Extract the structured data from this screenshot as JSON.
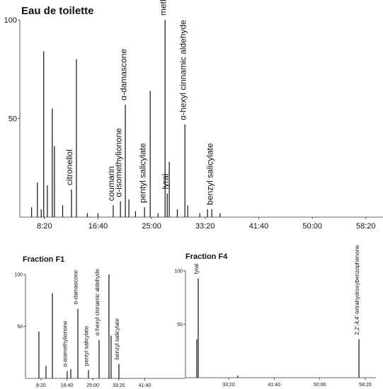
{
  "chart_data": [
    {
      "type": "chromatogram",
      "title": "Eau de toilette",
      "x": [
        380,
        434,
        470,
        493,
        527,
        573,
        593,
        670,
        752,
        798,
        900,
        1000,
        1142,
        1209,
        1255,
        1288,
        1350,
        1434,
        1487,
        1560,
        1626,
        1646,
        1665,
        1740,
        1811,
        1837,
        1950,
        2022,
        2062,
        2140
      ],
      "values": [
        5,
        17.5,
        4,
        84,
        16,
        55,
        36,
        6,
        14,
        80,
        2,
        2,
        6,
        8,
        57,
        9,
        3,
        5,
        64,
        2,
        100,
        12,
        28,
        4,
        47,
        6,
        2,
        4,
        4,
        2
      ],
      "xlim": [
        270,
        3660
      ],
      "ylim": [
        0,
        100
      ],
      "xticks": [
        {
          "value": 500,
          "label": "8:20"
        },
        {
          "value": 1000,
          "label": "16:40"
        },
        {
          "value": 1500,
          "label": "25:00"
        },
        {
          "value": 2000,
          "label": "33:20"
        },
        {
          "value": 2500,
          "label": "41:40"
        },
        {
          "value": 3000,
          "label": "50:00"
        },
        {
          "value": 3500,
          "label": "58:20"
        }
      ],
      "yticks": [
        50,
        100
      ],
      "color": "#111111",
      "annotations": [
        {
          "text": "citronellol",
          "x": 752
        },
        {
          "text": "coumarin",
          "x": 1142
        },
        {
          "text": "α-isomethylionone",
          "x": 1209
        },
        {
          "text": "α-damascone",
          "x": 1255
        },
        {
          "text": "pentyl salicylate",
          "x": 1434
        },
        {
          "text": "methyldihydrojasmonate",
          "x": 1626
        },
        {
          "text": "lyral",
          "x": 1646
        },
        {
          "text": "α-hexyl cinnamic aldehyde",
          "x": 1811
        },
        {
          "text": "benzyl salicylate",
          "x": 2062
        }
      ]
    },
    {
      "type": "chromatogram",
      "title": "Fraction F1",
      "x": [
        459,
        596,
        719,
        1005,
        1074,
        1210,
        1415,
        1620,
        1811,
        1852,
        2003
      ],
      "values": [
        45,
        12,
        82,
        7,
        9,
        67,
        8,
        37,
        100,
        41,
        14
      ],
      "xlim": [
        200,
        3287
      ],
      "ylim": [
        0,
        100
      ],
      "xticks": [
        {
          "value": 500,
          "label": "8:20"
        },
        {
          "value": 1000,
          "label": "16:40"
        },
        {
          "value": 1500,
          "label": "25:00"
        },
        {
          "value": 2000,
          "label": "33:20"
        },
        {
          "value": 2500,
          "label": "41:40"
        }
      ],
      "yticks": [
        50,
        100
      ],
      "color": "#111111",
      "annotations": [
        {
          "text": "α-isomethylionone",
          "x": 1005
        },
        {
          "text": "α-damascone",
          "x": 1210
        },
        {
          "text": "pentyl salicylate",
          "x": 1415
        },
        {
          "text": "α-hexyl cinnamic aldehyde",
          "x": 1620
        },
        {
          "text": "benzyl salicylate",
          "x": 2003
        }
      ]
    },
    {
      "type": "chromatogram",
      "title": "Fraction F4",
      "x": [
        1650,
        1666,
        2100,
        3431
      ],
      "values": [
        36,
        93,
        2,
        36
      ],
      "xlim": [
        1526,
        3617
      ],
      "ylim": [
        0,
        100
      ],
      "xticks": [
        {
          "value": 2000,
          "label": "33:20"
        },
        {
          "value": 2500,
          "label": "41:40"
        },
        {
          "value": 3000,
          "label": "50:00"
        },
        {
          "value": 3500,
          "label": "58:20"
        }
      ],
      "yticks": [
        50,
        100
      ],
      "color": "#111111",
      "annotations": [
        {
          "text": "lyral",
          "x": 1666
        },
        {
          "text": "2,2',4,4'-tetrahydroxybenzophenone",
          "x": 3431
        }
      ]
    }
  ]
}
